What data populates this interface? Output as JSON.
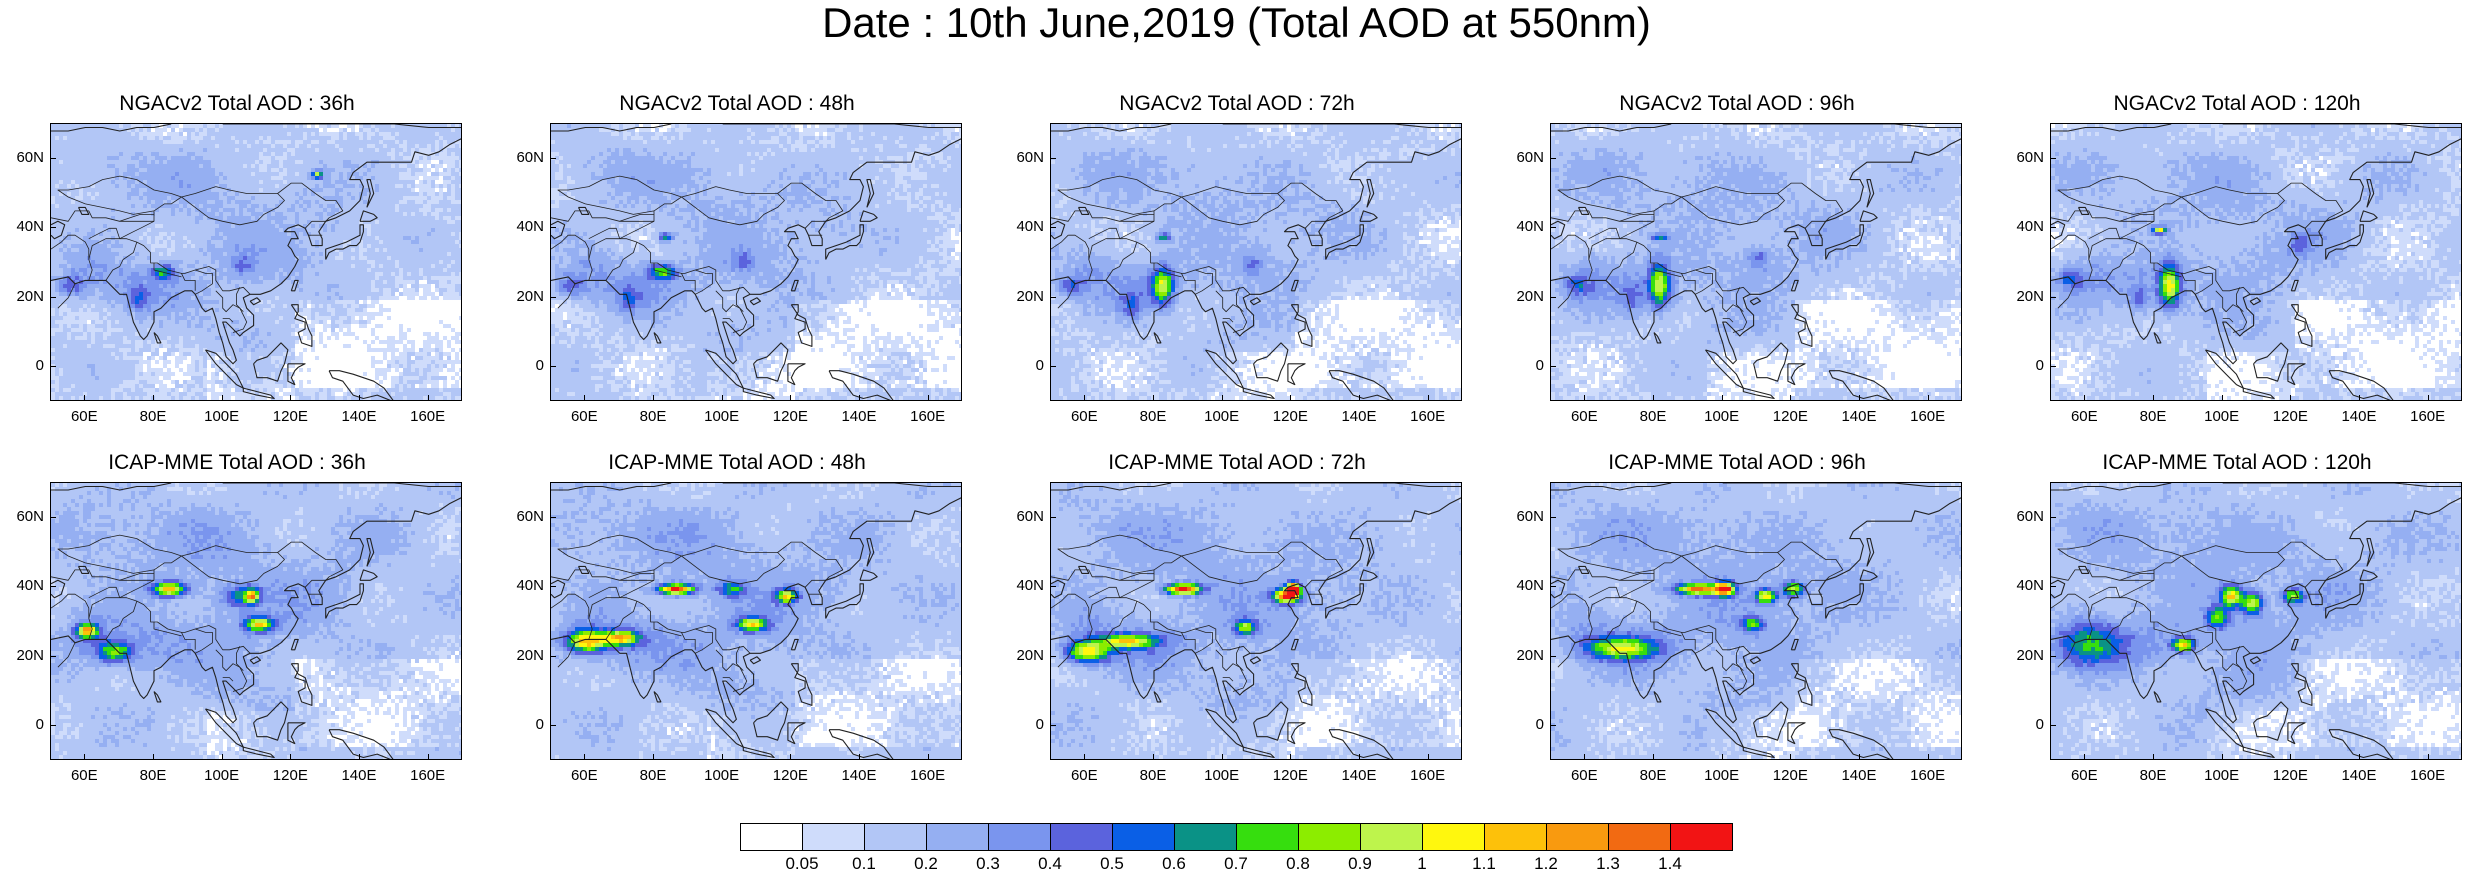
{
  "title": "Date : 10th June,2019 (Total AOD at 550nm)",
  "axes": {
    "y_labels": [
      "60N",
      "40N",
      "20N",
      "0"
    ],
    "x_labels": [
      "60E",
      "80E",
      "100E",
      "120E",
      "140E",
      "160E"
    ],
    "lon_range": [
      50,
      170
    ],
    "lat_range": [
      -10,
      70
    ]
  },
  "panels": [
    {
      "title": "NGACv2 Total AOD : 36h",
      "model": "NGACv2",
      "lead": 36
    },
    {
      "title": "NGACv2 Total AOD : 48h",
      "model": "NGACv2",
      "lead": 48
    },
    {
      "title": "NGACv2 Total AOD : 72h",
      "model": "NGACv2",
      "lead": 72
    },
    {
      "title": "NGACv2 Total AOD : 96h",
      "model": "NGACv2",
      "lead": 96
    },
    {
      "title": "NGACv2 Total AOD : 120h",
      "model": "NGACv2",
      "lead": 120
    },
    {
      "title": "ICAP-MME Total AOD : 36h",
      "model": "ICAP-MME",
      "lead": 36
    },
    {
      "title": "ICAP-MME Total AOD : 48h",
      "model": "ICAP-MME",
      "lead": 48
    },
    {
      "title": "ICAP-MME Total AOD : 72h",
      "model": "ICAP-MME",
      "lead": 72
    },
    {
      "title": "ICAP-MME Total AOD : 96h",
      "model": "ICAP-MME",
      "lead": 96
    },
    {
      "title": "ICAP-MME Total AOD : 120h",
      "model": "ICAP-MME",
      "lead": 120
    }
  ],
  "colorbar": {
    "labels": [
      "0.05",
      "0.1",
      "0.2",
      "0.3",
      "0.4",
      "0.5",
      "0.6",
      "0.7",
      "0.8",
      "0.9",
      "1",
      "1.1",
      "1.2",
      "1.3",
      "1.4"
    ],
    "colors": [
      "#ffffff",
      "#cfdcfb",
      "#b2c6f6",
      "#95aff2",
      "#7a95ee",
      "#5b63dd",
      "#0a5fe6",
      "#0a9286",
      "#36de0e",
      "#8ced00",
      "#bef44c",
      "#fff70e",
      "#fdc10a",
      "#f99a0f",
      "#f26a12",
      "#f21414"
    ]
  }
}
